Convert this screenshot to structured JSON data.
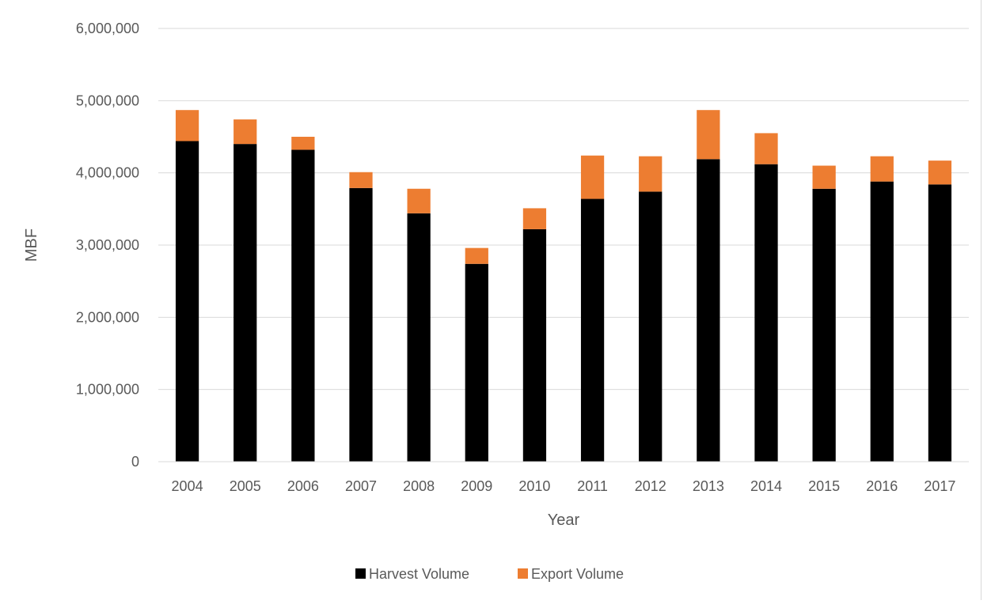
{
  "chart_data": {
    "type": "bar",
    "stacked": true,
    "title": "",
    "xlabel": "Year",
    "ylabel": "MBF",
    "ylim": [
      0,
      6000000
    ],
    "yticks": [
      "0",
      "1,000,000",
      "2,000,000",
      "3,000,000",
      "4,000,000",
      "5,000,000",
      "6,000,000"
    ],
    "categories": [
      "2004",
      "2005",
      "2006",
      "2007",
      "2008",
      "2009",
      "2010",
      "2011",
      "2012",
      "2013",
      "2014",
      "2015",
      "2016",
      "2017"
    ],
    "series": [
      {
        "name": "Harvest Volume",
        "color": "#000000",
        "values": [
          4440000,
          4400000,
          4320000,
          3790000,
          3440000,
          2740000,
          3220000,
          3640000,
          3740000,
          4190000,
          4120000,
          3780000,
          3880000,
          3840000
        ]
      },
      {
        "name": "Export Volume",
        "color": "#ed7d31",
        "values": [
          430000,
          340000,
          180000,
          220000,
          340000,
          220000,
          290000,
          600000,
          490000,
          680000,
          430000,
          320000,
          350000,
          330000
        ]
      }
    ],
    "grid": true,
    "legend": "bottom"
  }
}
